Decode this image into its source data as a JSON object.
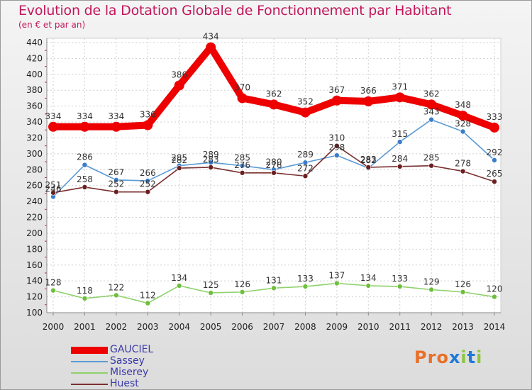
{
  "header": {
    "title": "Evolution de la Dotation Globale de Fonctionnement par Habitant",
    "subtitle": "(en € et par an)"
  },
  "logo": {
    "text": "Proxiti",
    "letter_colors": [
      "#e8702a",
      "#e8702a",
      "#e8702a",
      "#1f7ad6",
      "#8cc63f",
      "#1f7ad6",
      "#8cc63f"
    ]
  },
  "chart_data": {
    "type": "line",
    "title": "Evolution de la Dotation Globale de Fonctionnement par Habitant",
    "subtitle": "(en € et par an)",
    "xlabel": "",
    "ylabel": "",
    "x": [
      "2000",
      "2001",
      "2002",
      "2003",
      "2004",
      "2005",
      "2006",
      "2007",
      "2008",
      "2009",
      "2010",
      "2011",
      "2012",
      "2013",
      "2014"
    ],
    "ylim": [
      100,
      440
    ],
    "yticks": [
      100,
      120,
      140,
      160,
      180,
      200,
      220,
      240,
      260,
      280,
      300,
      320,
      340,
      360,
      380,
      400,
      420,
      440
    ],
    "grid": true,
    "legend_position": "bottom-left",
    "series": [
      {
        "name": "GAUCIEL",
        "color": "#ee0000",
        "line_width": 10,
        "marker": 7,
        "values": [
          334,
          334,
          334,
          336,
          386,
          434,
          370,
          362,
          352,
          367,
          366,
          371,
          362,
          348,
          333
        ],
        "labels": [
          "334",
          "334",
          "334",
          "336",
          "386",
          "434",
          "370",
          "362",
          "352",
          "367",
          "366",
          "371",
          "362",
          "348",
          "333"
        ]
      },
      {
        "name": "Sassey",
        "color": "#5b9bd5",
        "dot": "#3a7cc8",
        "line_width": 1.6,
        "marker": 3.5,
        "values": [
          246,
          286,
          267,
          266,
          285,
          289,
          285,
          280,
          289,
          298,
          282,
          315,
          343,
          328,
          292
        ],
        "labels": [
          "246",
          "286",
          "267",
          "266",
          "285",
          "289",
          "285",
          "280",
          "289",
          "298",
          "282",
          "315",
          "343",
          "328",
          "292"
        ]
      },
      {
        "name": "Miserey",
        "color": "#8fd16a",
        "dot": "#6fbf3f",
        "line_width": 1.6,
        "marker": 3.5,
        "values": [
          128,
          118,
          122,
          112,
          134,
          125,
          126,
          131,
          133,
          137,
          134,
          133,
          129,
          126,
          120
        ],
        "labels": [
          "128",
          "118",
          "122",
          "112",
          "134",
          "125",
          "126",
          "131",
          "133",
          "137",
          "134",
          "133",
          "129",
          "126",
          "120"
        ]
      },
      {
        "name": "Huest",
        "color": "#7a2f2f",
        "dot": "#6b1f1f",
        "line_width": 1.6,
        "marker": 3.5,
        "values": [
          251,
          258,
          252,
          252,
          282,
          283,
          276,
          276,
          272,
          310,
          283,
          284,
          285,
          278,
          265
        ],
        "labels": [
          "251",
          "258",
          "252",
          "252",
          "282",
          "283",
          "276",
          "276",
          "272",
          "310",
          "283",
          "284",
          "285",
          "278",
          "265"
        ]
      }
    ]
  }
}
